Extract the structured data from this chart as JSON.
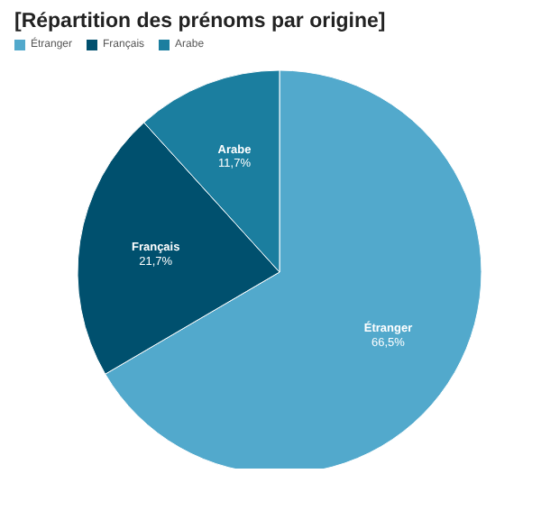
{
  "chart_data": {
    "type": "pie",
    "title": "[Répartition des prénoms par origine]",
    "categories": [
      "Étranger",
      "Français",
      "Arabe"
    ],
    "values": [
      66.5,
      21.7,
      11.7
    ],
    "colors": [
      "#52a9cc",
      "#00506e",
      "#1b7e9f"
    ],
    "value_labels": [
      "66,5%",
      "21,7%",
      "11,7%"
    ],
    "legend": "top left"
  }
}
